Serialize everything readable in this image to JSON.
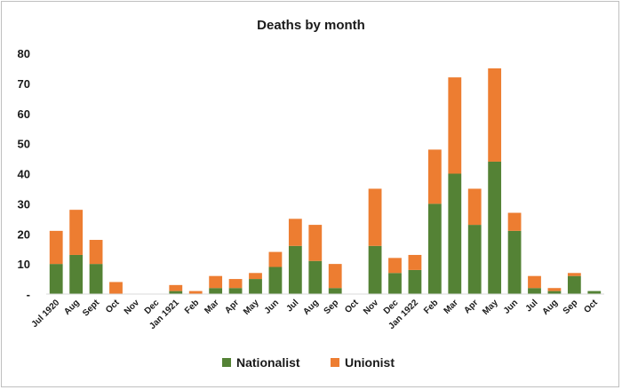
{
  "chart_data": {
    "type": "bar",
    "stacked": true,
    "title": "Deaths by month",
    "xlabel": "",
    "ylabel": "",
    "ylim": [
      0,
      80
    ],
    "yticks": [
      "-",
      "10",
      "20",
      "30",
      "40",
      "50",
      "60",
      "70",
      "80"
    ],
    "grid": false,
    "legend_position": "bottom",
    "categories": [
      "Jul 1920",
      "Aug",
      "Sept",
      "Oct",
      "Nov",
      "Dec",
      "Jan 1921",
      "Feb",
      "Mar",
      "Apr",
      "May",
      "Jun",
      "Jul",
      "Aug",
      "Sep",
      "Oct",
      "Nov",
      "Dec",
      "Jan 1922",
      "Feb",
      "Mar",
      "Apr",
      "May",
      "Jun",
      "Jul",
      "Aug",
      "Sep",
      "Oct"
    ],
    "series": [
      {
        "name": "Nationalist",
        "color": "#548235",
        "values": [
          10,
          13,
          10,
          0,
          0,
          0,
          1,
          0,
          2,
          2,
          5,
          9,
          16,
          11,
          2,
          0,
          16,
          7,
          8,
          30,
          40,
          23,
          44,
          21,
          2,
          1,
          6,
          1
        ]
      },
      {
        "name": "Unionist",
        "color": "#ed7d31",
        "values": [
          11,
          15,
          8,
          4,
          0,
          0,
          2,
          1,
          4,
          3,
          2,
          5,
          9,
          12,
          8,
          0,
          19,
          5,
          5,
          18,
          32,
          12,
          31,
          6,
          4,
          1,
          1,
          0
        ]
      }
    ]
  }
}
